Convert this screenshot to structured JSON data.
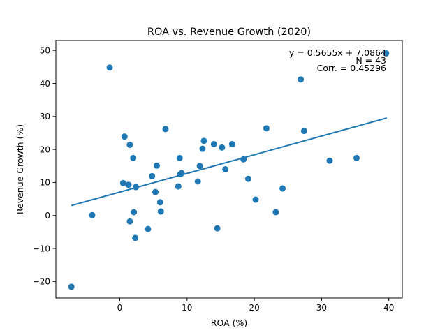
{
  "chart_data": {
    "type": "scatter",
    "title": "ROA vs. Revenue Growth (2020)",
    "xlabel": "ROA (%)",
    "ylabel": "Revenue Growth (%)",
    "xlim": [
      -9.5,
      42.0
    ],
    "ylim": [
      -25,
      53
    ],
    "xticks": [
      0,
      10,
      20,
      30,
      40
    ],
    "yticks": [
      -20,
      -10,
      0,
      10,
      20,
      30,
      40,
      50
    ],
    "grid": false,
    "point_color": "#1f77b4",
    "line_color": "#1f77b4",
    "annotations": [
      "y = 0.5655x + 7.0864",
      "N = 43",
      "Corr. = 0.45296"
    ],
    "regression": {
      "slope": 0.5655,
      "intercept": 7.0864,
      "x_range": [
        -7.2,
        39.7
      ]
    },
    "points": [
      {
        "x": -7.2,
        "y": -21.6
      },
      {
        "x": -4.1,
        "y": 0.1
      },
      {
        "x": -1.5,
        "y": 44.8
      },
      {
        "x": 0.5,
        "y": 9.8
      },
      {
        "x": 0.7,
        "y": 23.9
      },
      {
        "x": 1.3,
        "y": 9.3
      },
      {
        "x": 1.5,
        "y": 21.4
      },
      {
        "x": 1.5,
        "y": -1.8
      },
      {
        "x": 2.0,
        "y": 17.4
      },
      {
        "x": 2.1,
        "y": 1.0
      },
      {
        "x": 2.3,
        "y": -6.8
      },
      {
        "x": 2.4,
        "y": 8.6
      },
      {
        "x": 4.2,
        "y": -4.1
      },
      {
        "x": 4.8,
        "y": 11.9
      },
      {
        "x": 5.3,
        "y": 7.1
      },
      {
        "x": 5.5,
        "y": 15.1
      },
      {
        "x": 6.0,
        "y": 4.0
      },
      {
        "x": 6.1,
        "y": 1.2
      },
      {
        "x": 6.8,
        "y": 26.2
      },
      {
        "x": 8.7,
        "y": 8.8
      },
      {
        "x": 8.9,
        "y": 17.4
      },
      {
        "x": 9.0,
        "y": 12.5
      },
      {
        "x": 9.2,
        "y": 12.8
      },
      {
        "x": 11.6,
        "y": 10.3
      },
      {
        "x": 11.9,
        "y": 15.0
      },
      {
        "x": 12.3,
        "y": 20.2
      },
      {
        "x": 12.5,
        "y": 22.6
      },
      {
        "x": 14.0,
        "y": 21.6
      },
      {
        "x": 14.5,
        "y": -3.9
      },
      {
        "x": 15.2,
        "y": 20.6
      },
      {
        "x": 15.7,
        "y": 14.0
      },
      {
        "x": 16.7,
        "y": 21.6
      },
      {
        "x": 18.4,
        "y": 17.0
      },
      {
        "x": 19.1,
        "y": 11.1
      },
      {
        "x": 20.2,
        "y": 4.8
      },
      {
        "x": 21.8,
        "y": 26.4
      },
      {
        "x": 23.2,
        "y": 1.0
      },
      {
        "x": 24.2,
        "y": 8.2
      },
      {
        "x": 26.9,
        "y": 41.2
      },
      {
        "x": 27.4,
        "y": 25.6
      },
      {
        "x": 31.2,
        "y": 16.6
      },
      {
        "x": 35.2,
        "y": 17.4
      },
      {
        "x": 39.6,
        "y": 49.1
      }
    ]
  }
}
